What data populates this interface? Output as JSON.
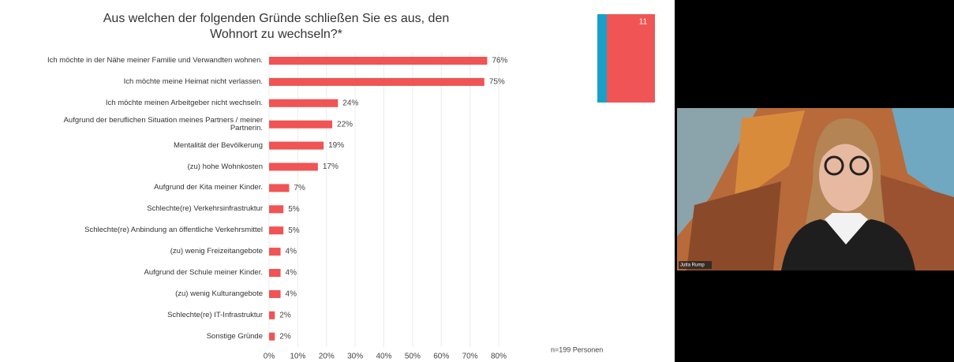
{
  "chart_data": {
    "type": "hbar",
    "title": "Aus welchen der folgenden Gründe schließen Sie es aus, den Wohnort zu wechseln?*",
    "categories": [
      "Ich möchte in der Nähe meiner Familie und Verwandten wohnen.",
      "Ich möchte meine Heimat nicht verlassen.",
      "Ich möchte meinen Arbeitgeber nicht wechseln.",
      "Aufgrund der beruflichen Situation meines Partners / meiner Partnerin.",
      "Mentalität der Bevölkerung",
      "(zu) hohe Wohnkosten",
      "Aufgrund der Kita meiner Kinder.",
      "Schlechte(re) Verkehrsinfrastruktur",
      "Schlechte(re) Anbindung an öffentliche Verkehrsmittel",
      "(zu) wenig Freizeitangebote",
      "Aufgrund der Schule meiner Kinder.",
      "(zu) wenig Kulturangebote",
      "Schlechte(re) IT-Infrastruktur",
      "Sonstige Gründe"
    ],
    "values": [
      76,
      75,
      24,
      22,
      19,
      17,
      7,
      5,
      5,
      4,
      4,
      4,
      2,
      2
    ],
    "value_labels": [
      "76%",
      "75%",
      "24%",
      "22%",
      "19%",
      "17%",
      "7%",
      "5%",
      "5%",
      "4%",
      "4%",
      "4%",
      "2%",
      "2%"
    ],
    "color": "#f05454",
    "xlim": [
      0,
      80
    ],
    "xticks": [
      {
        "value": 0,
        "label": "0%"
      },
      {
        "value": 10,
        "label": "10%"
      },
      {
        "value": 20,
        "label": "20%"
      },
      {
        "value": 30,
        "label": "30%"
      },
      {
        "value": 40,
        "label": "40%"
      },
      {
        "value": 50,
        "label": "50%"
      },
      {
        "value": 60,
        "label": "60%"
      },
      {
        "value": 70,
        "label": "70%"
      },
      {
        "value": 80,
        "label": "80%"
      }
    ],
    "grid": true,
    "note": "n=199 Personen"
  },
  "slide_number": "11",
  "participant_name": "Jutta Rump"
}
